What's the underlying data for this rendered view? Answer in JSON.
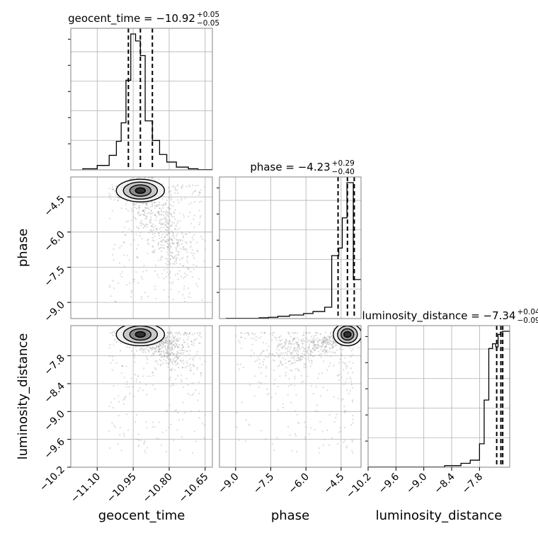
{
  "chart_data": {
    "type": "corner",
    "parameters": [
      "geocent_time",
      "phase",
      "luminosity_distance"
    ],
    "titles": [
      {
        "prefix": "geocent_time = ",
        "value": "−10.92",
        "plus": "+0.05",
        "minus": "−0.05"
      },
      {
        "prefix": "phase = ",
        "value": "−4.23",
        "plus": "+0.29",
        "minus": "−0.40"
      },
      {
        "prefix": "luminosity_distance = ",
        "value": "−7.34",
        "plus": "+0.04",
        "minus": "−0.09"
      }
    ],
    "ranges": {
      "geocent_time": [
        -11.21,
        -10.62
      ],
      "phase": [
        -9.69,
        -3.65
      ],
      "luminosity_distance": [
        -10.2,
        -7.15
      ]
    },
    "ticks": {
      "geocent_time": [
        -11.1,
        -10.95,
        -10.8,
        -10.65
      ],
      "phase": [
        -9.0,
        -7.5,
        -6.0,
        -4.5
      ],
      "luminosity_distance": [
        -10.2,
        -9.6,
        -9.0,
        -8.4,
        -7.8
      ]
    },
    "tick_labels": {
      "geocent_time": [
        "−11.10",
        "−10.95",
        "−10.80",
        "−10.65"
      ],
      "phase": [
        "−9.0",
        "−7.5",
        "−6.0",
        "−4.5"
      ],
      "luminosity_distance": [
        "−10.2",
        "−9.6",
        "−9.0",
        "−8.4",
        "−7.8"
      ]
    },
    "quantiles": {
      "geocent_time": [
        -10.97,
        -10.92,
        -10.87
      ],
      "phase": [
        -4.63,
        -4.23,
        -3.94
      ],
      "luminosity_distance": [
        -7.43,
        -7.34,
        -7.3
      ]
    },
    "histograms": {
      "geocent_time": {
        "edges": [
          -11.16,
          -11.1,
          -11.05,
          -11.02,
          -11.0,
          -10.98,
          -10.96,
          -10.94,
          -10.92,
          -10.9,
          -10.87,
          -10.84,
          -10.81,
          -10.77,
          -10.72,
          -10.68,
          -10.62
        ],
        "counts": [
          0.4,
          1.6,
          5.2,
          10.2,
          16.8,
          32.0,
          48.5,
          46.0,
          40.8,
          17.5,
          10.5,
          5.5,
          2.8,
          1.0,
          0.4,
          0.1
        ]
      },
      "phase": {
        "edges": [
          -9.4,
          -8.0,
          -7.6,
          -7.2,
          -6.7,
          -6.1,
          -5.7,
          -5.2,
          -4.9,
          -4.6,
          -4.45,
          -4.25,
          -3.98,
          -3.65
        ],
        "counts": [
          0.1,
          0.3,
          0.5,
          0.9,
          1.4,
          2.0,
          2.8,
          4.5,
          25.0,
          28.0,
          40.0,
          54.0,
          15.5
        ]
      },
      "luminosity_distance": {
        "edges": [
          -10.2,
          -8.55,
          -8.2,
          -8.0,
          -7.8,
          -7.7,
          -7.6,
          -7.52,
          -7.45,
          -7.4,
          -7.35,
          -7.3,
          -7.15
        ],
        "counts": [
          0.1,
          1.0,
          2.5,
          4.5,
          15.0,
          43.0,
          76.0,
          79.0,
          77.0,
          85.0,
          86.5,
          87.0
        ]
      }
    },
    "contour_levels": [
      "0.5σ",
      "1σ",
      "1.5σ",
      "2σ"
    ],
    "grid": true,
    "colors": {
      "line": "#000000",
      "grid": "#b0b0b0",
      "frame": "#808080",
      "points": "#9a9a9a"
    }
  }
}
